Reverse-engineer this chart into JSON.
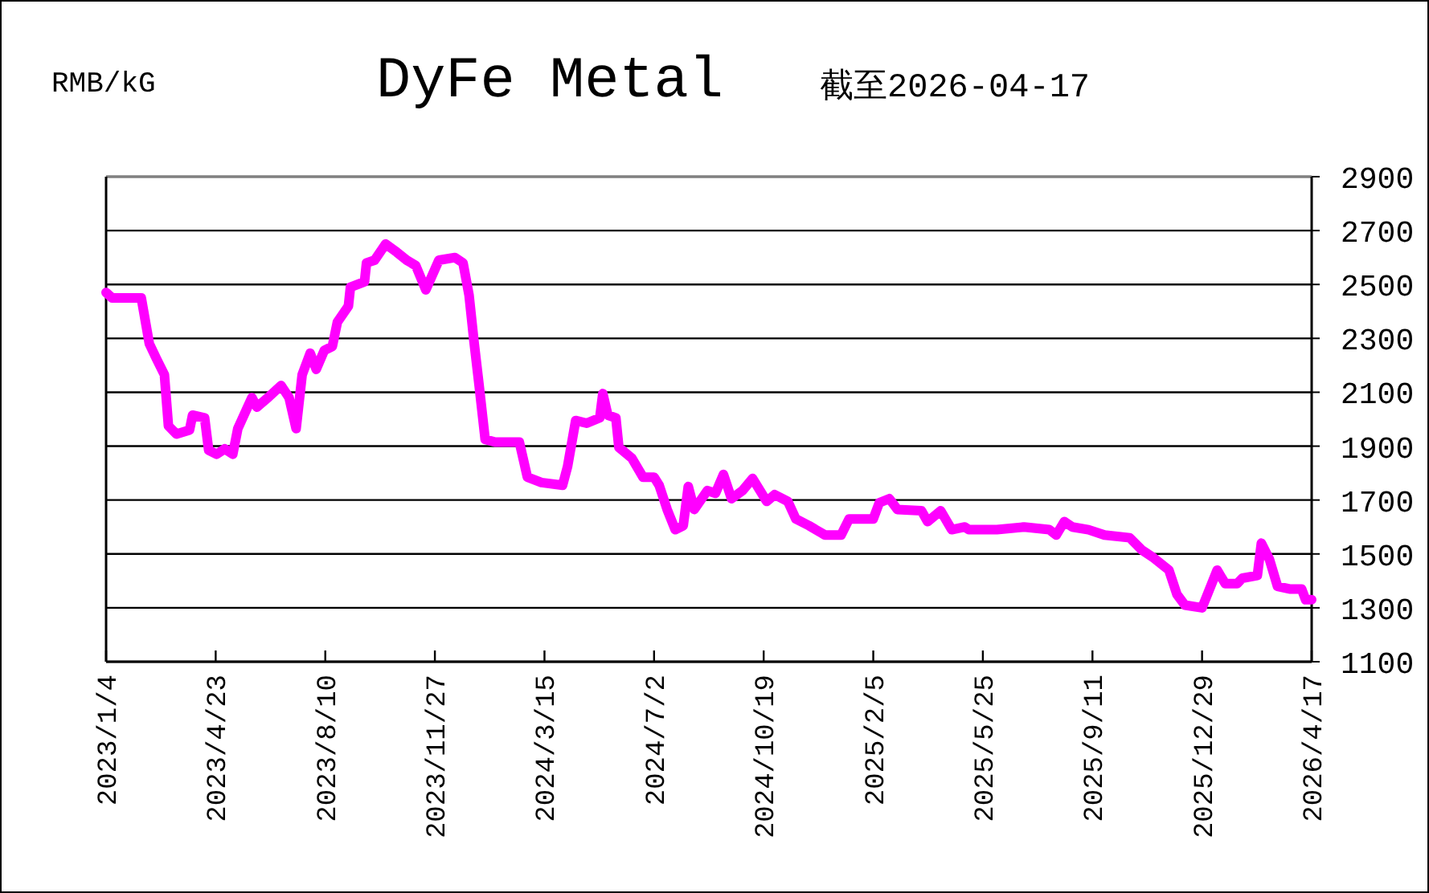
{
  "chart_data": {
    "type": "line",
    "title": "DyFe Metal",
    "subtitle": "截至2026-04-17",
    "ylabel": "RMB/kG",
    "grid": "y",
    "marker": "none",
    "line_style": "solid",
    "xlim": [
      "2023-01-04",
      "2026-04-17"
    ],
    "xticks": [
      {
        "value": "2023-01-04",
        "label": "2023/1/4"
      },
      {
        "value": "2023-04-23",
        "label": "2023/4/23"
      },
      {
        "value": "2023-08-10",
        "label": "2023/8/10"
      },
      {
        "value": "2023-11-27",
        "label": "2023/11/27"
      },
      {
        "value": "2024-03-15",
        "label": "2024/3/15"
      },
      {
        "value": "2024-07-02",
        "label": "2024/7/2"
      },
      {
        "value": "2024-10-19",
        "label": "2024/10/19"
      },
      {
        "value": "2025-02-05",
        "label": "2025/2/5"
      },
      {
        "value": "2025-05-25",
        "label": "2025/5/25"
      },
      {
        "value": "2025-09-11",
        "label": "2025/9/11"
      },
      {
        "value": "2025-12-29",
        "label": "2025/12/29"
      },
      {
        "value": "2026-04-17",
        "label": "2026/4/17"
      }
    ],
    "ylim": [
      1100,
      2900
    ],
    "yticks": [
      1100,
      1300,
      1500,
      1700,
      1900,
      2100,
      2300,
      2500,
      2700,
      2900
    ],
    "series": [
      {
        "color": "#ff00ff",
        "x": [
          "2023-01-04",
          "2023-01-10",
          "2023-02-08",
          "2023-02-16",
          "2023-02-23",
          "2023-03-03",
          "2023-03-07",
          "2023-03-15",
          "2023-03-28",
          "2023-03-31",
          "2023-04-12",
          "2023-04-16",
          "2023-04-24",
          "2023-05-02",
          "2023-05-10",
          "2023-05-15",
          "2023-05-29",
          "2023-06-03",
          "2023-06-14",
          "2023-06-27",
          "2023-07-05",
          "2023-07-12",
          "2023-07-18",
          "2023-07-26",
          "2023-08-01",
          "2023-08-09",
          "2023-08-17",
          "2023-08-22",
          "2023-09-02",
          "2023-09-04",
          "2023-09-18",
          "2023-09-20",
          "2023-09-28",
          "2023-10-09",
          "2023-10-20",
          "2023-10-30",
          "2023-11-08",
          "2023-11-18",
          "2023-12-01",
          "2023-12-17",
          "2023-12-25",
          "2023-12-31",
          "2024-01-05",
          "2024-01-10",
          "2024-01-16",
          "2024-01-26",
          "2024-02-19",
          "2024-02-27",
          "2024-03-12",
          "2024-04-02",
          "2024-04-07",
          "2024-04-15",
          "2024-04-26",
          "2024-05-09",
          "2024-05-12",
          "2024-05-17",
          "2024-05-25",
          "2024-05-28",
          "2024-06-10",
          "2024-06-21",
          "2024-07-02",
          "2024-07-07",
          "2024-07-15",
          "2024-07-23",
          "2024-07-31",
          "2024-08-05",
          "2024-08-11",
          "2024-08-24",
          "2024-09-01",
          "2024-09-09",
          "2024-09-17",
          "2024-09-28",
          "2024-10-08",
          "2024-10-22",
          "2024-10-30",
          "2024-11-12",
          "2024-11-20",
          "2024-12-03",
          "2024-12-19",
          "2025-01-04",
          "2025-01-12",
          "2025-02-05",
          "2025-02-11",
          "2025-02-21",
          "2025-03-01",
          "2025-03-25",
          "2025-03-31",
          "2025-04-13",
          "2025-04-24",
          "2025-05-07",
          "2025-05-11",
          "2025-06-08",
          "2025-07-05",
          "2025-07-30",
          "2025-08-06",
          "2025-08-14",
          "2025-08-22",
          "2025-09-07",
          "2025-09-23",
          "2025-10-18",
          "2025-10-30",
          "2025-11-11",
          "2025-11-26",
          "2025-12-04",
          "2025-12-12",
          "2025-12-29",
          "2026-01-13",
          "2026-01-21",
          "2026-02-02",
          "2026-02-07",
          "2026-02-22",
          "2026-02-26",
          "2026-03-06",
          "2026-03-14",
          "2026-03-26",
          "2026-04-07",
          "2026-04-11",
          "2026-04-17"
        ],
        "values": [
          2470,
          2450,
          2450,
          2280,
          2225,
          2165,
          1975,
          1945,
          1960,
          2015,
          2005,
          1885,
          1870,
          1890,
          1870,
          1965,
          2080,
          2045,
          2080,
          2125,
          2080,
          1965,
          2165,
          2245,
          2185,
          2255,
          2270,
          2360,
          2420,
          2490,
          2510,
          2580,
          2590,
          2650,
          2620,
          2590,
          2570,
          2480,
          2590,
          2600,
          2580,
          2460,
          2285,
          2125,
          1925,
          1915,
          1915,
          1785,
          1765,
          1755,
          1825,
          1995,
          1985,
          2005,
          2095,
          2015,
          2005,
          1895,
          1855,
          1785,
          1785,
          1755,
          1665,
          1590,
          1605,
          1750,
          1665,
          1735,
          1725,
          1795,
          1705,
          1735,
          1780,
          1695,
          1720,
          1695,
          1630,
          1605,
          1570,
          1570,
          1630,
          1630,
          1690,
          1705,
          1665,
          1660,
          1620,
          1660,
          1590,
          1600,
          1590,
          1590,
          1600,
          1590,
          1570,
          1620,
          1600,
          1590,
          1570,
          1560,
          1515,
          1485,
          1440,
          1350,
          1310,
          1300,
          1440,
          1390,
          1390,
          1410,
          1420,
          1540,
          1480,
          1380,
          1370,
          1370,
          1330,
          1330
        ]
      }
    ]
  }
}
